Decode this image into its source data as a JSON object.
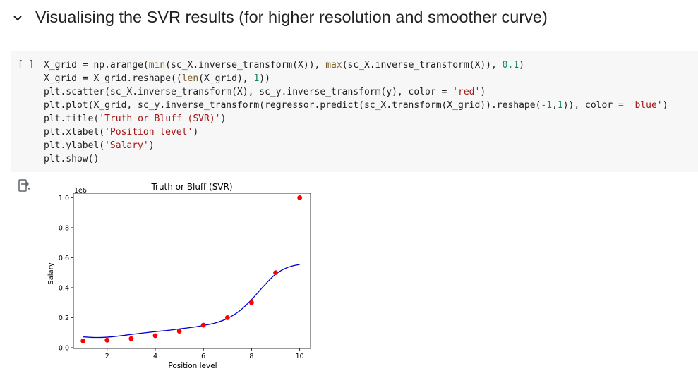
{
  "section": {
    "title": "Visualising the SVR results (for higher resolution and smoother curve)",
    "collapse_icon": "chevron-down-icon"
  },
  "cell": {
    "run_label": "[ ]",
    "code_lines": [
      [
        [
          "X_grid ",
          "op"
        ],
        [
          "= ",
          "op"
        ],
        [
          "np.arange",
          "op"
        ],
        [
          "(",
          "op"
        ],
        [
          "min",
          "fn"
        ],
        [
          "(sc_X.inverse_transform(X)), ",
          "op"
        ],
        [
          "max",
          "fn"
        ],
        [
          "(sc_X.inverse_transform(X)), ",
          "op"
        ],
        [
          "0.1",
          "num"
        ],
        [
          ")",
          "op"
        ]
      ],
      [
        [
          "X_grid ",
          "op"
        ],
        [
          "= ",
          "op"
        ],
        [
          "X_grid.reshape((",
          "op"
        ],
        [
          "len",
          "fn"
        ],
        [
          "(X_grid), ",
          "op"
        ],
        [
          "1",
          "num"
        ],
        [
          "))",
          "op"
        ]
      ],
      [
        [
          "plt.scatter(sc_X.inverse_transform(X), sc_y.inverse_transform(y), color ",
          "op"
        ],
        [
          "= ",
          "op"
        ],
        [
          "'red'",
          "str"
        ],
        [
          ")",
          "op"
        ]
      ],
      [
        [
          "plt.plot(X_grid, sc_y.inverse_transform(regressor.predict(sc_X.transform(X_grid)).reshape(",
          "op"
        ],
        [
          "-1",
          "num"
        ],
        [
          ",",
          "op"
        ],
        [
          "1",
          "num"
        ],
        [
          ")), color ",
          "op"
        ],
        [
          "= ",
          "op"
        ],
        [
          "'blue'",
          "str"
        ],
        [
          ")",
          "op"
        ]
      ],
      [
        [
          "plt.title(",
          "op"
        ],
        [
          "'Truth or Bluff (SVR)'",
          "str"
        ],
        [
          ")",
          "op"
        ]
      ],
      [
        [
          "plt.xlabel(",
          "op"
        ],
        [
          "'Position level'",
          "str"
        ],
        [
          ")",
          "op"
        ]
      ],
      [
        [
          "plt.ylabel(",
          "op"
        ],
        [
          "'Salary'",
          "str"
        ],
        [
          ")",
          "op"
        ]
      ],
      [
        [
          "plt.show()",
          "op"
        ]
      ]
    ]
  },
  "output": {
    "toggle_icon": "output-toggle-icon"
  },
  "chart_data": {
    "type": "scatter",
    "title": "Truth or Bluff (SVR)",
    "xlabel": "Position level",
    "ylabel": "Salary",
    "offset_text": "1e6",
    "xlim": [
      0.6,
      10.45
    ],
    "ylim": [
      -0.005,
      1.03
    ],
    "xticks": [
      2,
      4,
      6,
      8,
      10
    ],
    "yticks": [
      0.0,
      0.2,
      0.4,
      0.6,
      0.8,
      1.0
    ],
    "xtick_labels": [
      "2",
      "4",
      "6",
      "8",
      "10"
    ],
    "ytick_labels": [
      "0.0",
      "0.2",
      "0.4",
      "0.6",
      "0.8",
      "1.0"
    ],
    "scatter": {
      "color": "#ff0000",
      "x": [
        1,
        2,
        3,
        4,
        5,
        6,
        7,
        8,
        9,
        10
      ],
      "y": [
        0.045,
        0.05,
        0.06,
        0.08,
        0.11,
        0.15,
        0.2,
        0.3,
        0.5,
        1.0
      ]
    },
    "line": {
      "color": "#0000cc",
      "x": [
        1,
        1.5,
        2,
        2.5,
        3,
        3.5,
        4,
        4.5,
        5,
        5.5,
        6,
        6.5,
        7,
        7.5,
        8,
        8.5,
        9,
        9.5,
        10
      ],
      "y": [
        0.072,
        0.068,
        0.07,
        0.078,
        0.088,
        0.098,
        0.107,
        0.115,
        0.125,
        0.135,
        0.148,
        0.165,
        0.195,
        0.245,
        0.32,
        0.41,
        0.49,
        0.535,
        0.555
      ]
    },
    "grid": false
  }
}
